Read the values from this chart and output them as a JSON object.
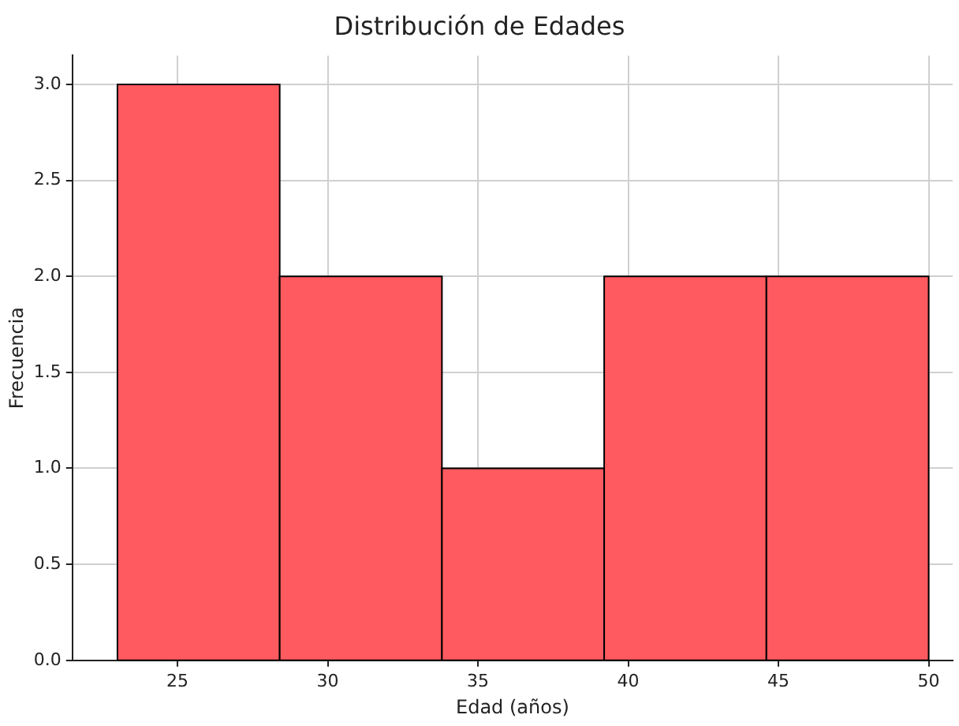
{
  "chart_data": {
    "type": "histogram",
    "title": "Distribución de Edades",
    "xlabel": "Edad (años)",
    "ylabel": "Frecuencia",
    "bins": [
      23,
      28.4,
      33.8,
      39.2,
      44.6,
      50
    ],
    "values": [
      3,
      2,
      1,
      2,
      2
    ],
    "color": "#ff5a5f",
    "xlim": [
      21.5,
      50.8
    ],
    "xticks": [
      25,
      30,
      35,
      40,
      45,
      50
    ],
    "ylim": [
      0,
      3.15
    ],
    "yticks": [
      {
        "value": 0,
        "label": "0.0"
      },
      {
        "value": 0.5,
        "label": "0.5"
      },
      {
        "value": 1,
        "label": "1.0"
      },
      {
        "value": 1.5,
        "label": "1.5"
      },
      {
        "value": 2,
        "label": "2.0"
      },
      {
        "value": 2.5,
        "label": "2.5"
      },
      {
        "value": 3,
        "label": "3.0"
      }
    ],
    "grid": true,
    "legend": false
  }
}
